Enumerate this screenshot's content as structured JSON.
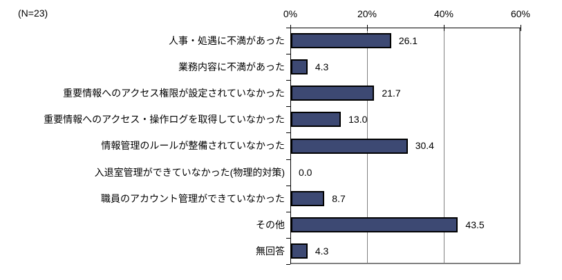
{
  "header": {
    "n_label": "(N=23)"
  },
  "chart_data": {
    "type": "bar",
    "orientation": "horizontal",
    "title": "",
    "xlabel": "",
    "ylabel": "",
    "xlim": [
      0,
      60
    ],
    "grid": true,
    "legend": "none",
    "x_tick_values": [
      0,
      20,
      40,
      60
    ],
    "x_tick_labels": [
      "0%",
      "20%",
      "40%",
      "60%"
    ],
    "categories": [
      "人事・処遇に不満があった",
      "業務内容に不満があった",
      "重要情報へのアクセス権限が設定されていなかった",
      "重要情報へのアクセス・操作ログを取得していなかった",
      "情報管理のルールが整備されていなかった",
      "入退室管理ができていなかった(物理的対策)",
      "職員のアカウント管理ができていなかった",
      "その他",
      "無回答"
    ],
    "values": [
      26.1,
      4.3,
      21.7,
      13.0,
      30.4,
      0.0,
      8.7,
      43.5,
      4.3
    ],
    "value_labels": [
      "26.1",
      "4.3",
      "21.7",
      "13.0",
      "30.4",
      "0.0",
      "8.7",
      "43.5",
      "4.3"
    ],
    "colors": {
      "bar_fill": "#3D4973",
      "bar_border": "#000000",
      "gridline": "#808080",
      "plot_frame": "#808080",
      "axis": "#000000",
      "text": "#000000",
      "background": "#FFFFFF"
    }
  }
}
